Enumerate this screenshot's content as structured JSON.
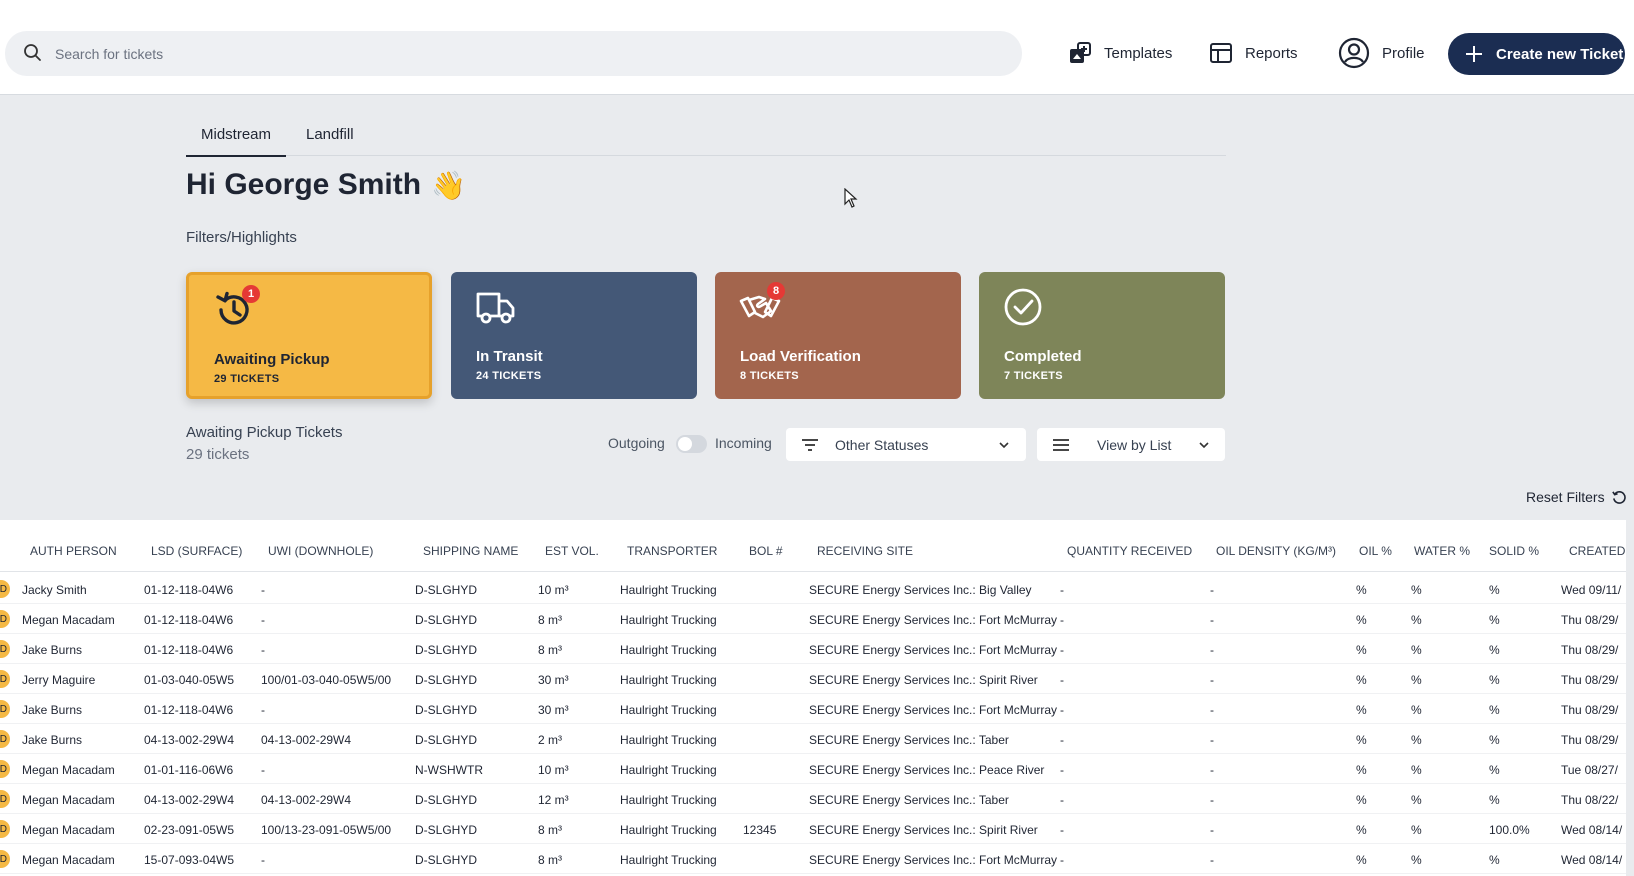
{
  "header": {
    "search_placeholder": "Search for tickets",
    "nav": [
      {
        "label": "Templates",
        "icon": "templates-icon"
      },
      {
        "label": "Reports",
        "icon": "reports-icon"
      },
      {
        "label": "Profile",
        "icon": "profile-icon"
      }
    ],
    "create_label": "Create new Ticket"
  },
  "tabs": [
    {
      "label": "Midstream",
      "active": true
    },
    {
      "label": "Landfill",
      "active": false
    }
  ],
  "greeting": "Hi George Smith",
  "greeting_emoji": "👋",
  "filters_label": "Filters/Highlights",
  "cards": [
    {
      "title": "Awaiting Pickup",
      "count": "29 TICKETS",
      "badge": "1",
      "icon": "history-clock-icon",
      "color": "#f5b945"
    },
    {
      "title": "In Transit",
      "count": "24 TICKETS",
      "badge": "",
      "icon": "truck-icon",
      "color": "#445877"
    },
    {
      "title": "Load Verification",
      "count": "8 TICKETS",
      "badge": "8",
      "icon": "handshake-icon",
      "color": "#a3654d"
    },
    {
      "title": "Completed",
      "count": "7 TICKETS",
      "badge": "",
      "icon": "check-circle-icon",
      "color": "#7e8559"
    }
  ],
  "list": {
    "title": "Awaiting Pickup Tickets",
    "count": "29 tickets",
    "toggle_left": "Outgoing",
    "toggle_right": "Incoming",
    "status_filter": "Other Statuses",
    "view_mode": "View by List",
    "reset_label": "Reset Filters"
  },
  "table": {
    "columns": [
      "AUTH PERSON",
      "LSD (SURFACE)",
      "UWI (DOWNHOLE)",
      "SHIPPING NAME",
      "EST VOL.",
      "TRANSPORTER",
      "BOL #",
      "RECEIVING SITE",
      "QUANTITY RECEIVED",
      "OIL DENSITY (KG/M³)",
      "OIL %",
      "WATER %",
      "SOLID %",
      "CREATED"
    ],
    "rows": [
      [
        "Jacky Smith",
        "01-12-118-04W6",
        "-",
        "D-SLGHYD",
        "10 m³",
        "Haulright Trucking",
        "",
        "SECURE Energy Services Inc.: Big Valley",
        "-",
        "-",
        "%",
        "%",
        "%",
        "Wed 09/11/"
      ],
      [
        "Megan Macadam",
        "01-12-118-04W6",
        "-",
        "D-SLGHYD",
        "8 m³",
        "Haulright Trucking",
        "",
        "SECURE Energy Services Inc.: Fort McMurray",
        "-",
        "-",
        "%",
        "%",
        "%",
        "Thu 08/29/"
      ],
      [
        "Jake Burns",
        "01-12-118-04W6",
        "-",
        "D-SLGHYD",
        "8 m³",
        "Haulright Trucking",
        "",
        "SECURE Energy Services Inc.: Fort McMurray",
        "-",
        "-",
        "%",
        "%",
        "%",
        "Thu 08/29/"
      ],
      [
        "Jerry Maguire",
        "01-03-040-05W5",
        "100/01-03-040-05W5/00",
        "D-SLGHYD",
        "30 m³",
        "Haulright Trucking",
        "",
        "SECURE Energy Services Inc.: Spirit River",
        "-",
        "-",
        "%",
        "%",
        "%",
        "Thu 08/29/"
      ],
      [
        "Jake Burns",
        "01-12-118-04W6",
        "-",
        "D-SLGHYD",
        "30 m³",
        "Haulright Trucking",
        "",
        "SECURE Energy Services Inc.: Fort McMurray",
        "-",
        "-",
        "%",
        "%",
        "%",
        "Thu 08/29/"
      ],
      [
        "Jake Burns",
        "04-13-002-29W4",
        "04-13-002-29W4",
        "D-SLGHYD",
        "2 m³",
        "Haulright Trucking",
        "",
        "SECURE Energy Services Inc.: Taber",
        "-",
        "-",
        "%",
        "%",
        "%",
        "Thu 08/29/"
      ],
      [
        "Megan Macadam",
        "01-01-116-06W6",
        "-",
        "N-WSHWTR",
        "10 m³",
        "Haulright Trucking",
        "",
        "SECURE Energy Services Inc.: Peace River",
        "-",
        "-",
        "%",
        "%",
        "%",
        "Tue 08/27/"
      ],
      [
        "Megan Macadam",
        "04-13-002-29W4",
        "04-13-002-29W4",
        "D-SLGHYD",
        "12 m³",
        "Haulright Trucking",
        "",
        "SECURE Energy Services Inc.: Taber",
        "-",
        "-",
        "%",
        "%",
        "%",
        "Thu 08/22/"
      ],
      [
        "Megan Macadam",
        "02-23-091-05W5",
        "100/13-23-091-05W5/00",
        "D-SLGHYD",
        "8 m³",
        "Haulright Trucking",
        "12345",
        "SECURE Energy Services Inc.: Spirit River",
        "-",
        "-",
        "%",
        "%",
        "100.0%",
        "Wed 08/14/"
      ],
      [
        "Megan Macadam",
        "15-07-093-04W5",
        "-",
        "D-SLGHYD",
        "8 m³",
        "Haulright Trucking",
        "",
        "SECURE Energy Services Inc.: Fort McMurray",
        "-",
        "-",
        "%",
        "%",
        "%",
        "Wed 08/14/"
      ]
    ],
    "row_badge": "D"
  }
}
